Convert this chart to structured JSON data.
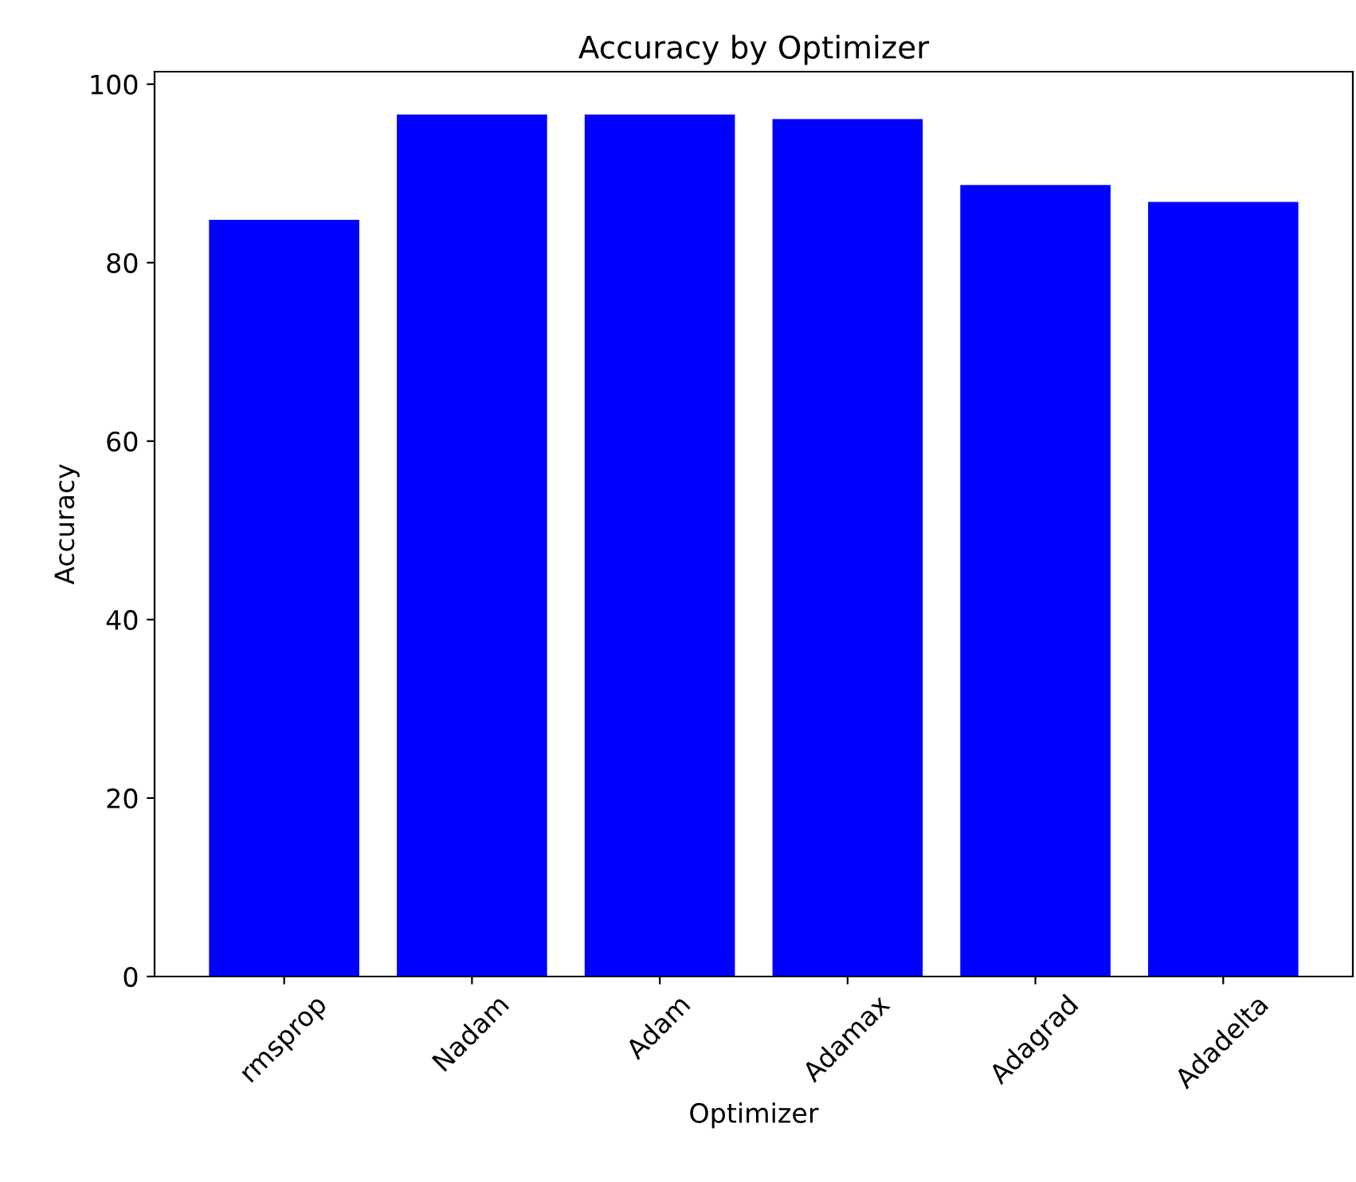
{
  "chart_data": {
    "type": "bar",
    "title": "Accuracy by Optimizer",
    "xlabel": "Optimizer",
    "ylabel": "Accuracy",
    "categories": [
      "rmsprop",
      "Nadam",
      "Adam",
      "Adamax",
      "Adagrad",
      "Adadelta"
    ],
    "values": [
      84.8,
      96.6,
      96.6,
      96.1,
      88.7,
      86.8
    ],
    "color": "#0000ff",
    "ylim": [
      0,
      101.4
    ],
    "yticks": [
      0,
      20,
      40,
      60,
      80,
      100
    ],
    "grid": false
  }
}
